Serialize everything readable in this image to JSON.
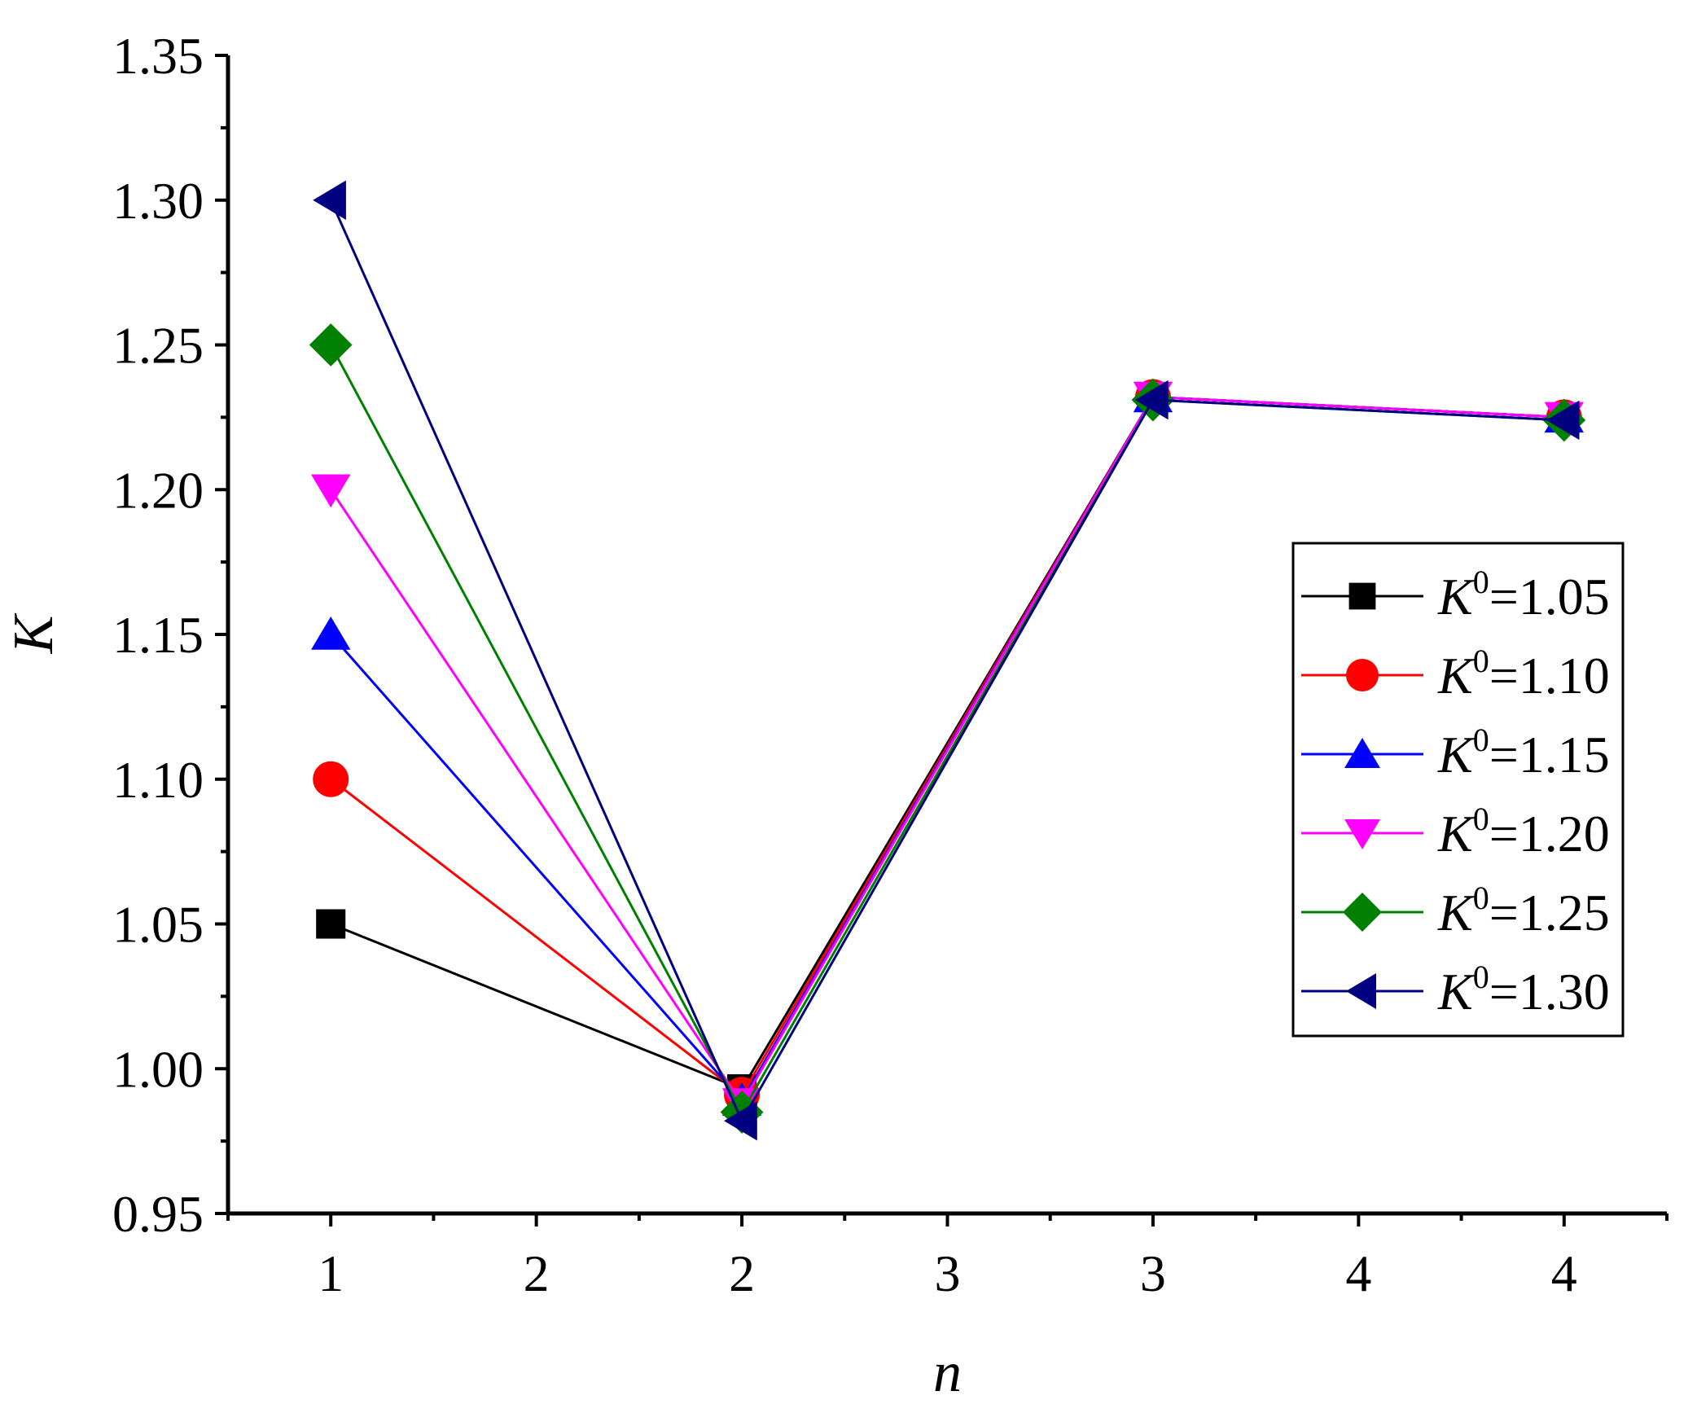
{
  "chart_data": {
    "type": "line",
    "title": "",
    "xlabel": "n",
    "ylabel": "K",
    "x_tick_positions": [
      1,
      1.5,
      2,
      2.5,
      3,
      3.5,
      4
    ],
    "x_tick_labels": [
      "1",
      "2",
      "2",
      "3",
      "3",
      "4",
      "4"
    ],
    "xlim": [
      0.75,
      4.25
    ],
    "ylim": [
      0.95,
      1.35
    ],
    "y_tick_values": [
      0.95,
      1.0,
      1.05,
      1.1,
      1.15,
      1.2,
      1.25,
      1.3,
      1.35
    ],
    "y_tick_labels": [
      "0.95",
      "1.00",
      "1.05",
      "1.10",
      "1.15",
      "1.20",
      "1.25",
      "1.30",
      "1.35"
    ],
    "legend_position": "right",
    "x": [
      1,
      2,
      3,
      4
    ],
    "series": [
      {
        "name": "K0=1.05",
        "label_base": "K",
        "label_sup": "0",
        "label_rest": "=1.05",
        "color": "#000000",
        "marker": "square",
        "values": [
          1.05,
          0.993,
          1.232,
          1.225
        ]
      },
      {
        "name": "K0=1.10",
        "label_base": "K",
        "label_sup": "0",
        "label_rest": "=1.10",
        "color": "#ff0000",
        "marker": "circle",
        "values": [
          1.1,
          0.991,
          1.232,
          1.225
        ]
      },
      {
        "name": "K0=1.15",
        "label_base": "K",
        "label_sup": "0",
        "label_rest": "=1.15",
        "color": "#0000ff",
        "marker": "triangle-up",
        "values": [
          1.15,
          0.989,
          1.232,
          1.225
        ]
      },
      {
        "name": "K0=1.20",
        "label_base": "K",
        "label_sup": "0",
        "label_rest": "=1.20",
        "color": "#ff00ff",
        "marker": "triangle-down",
        "values": [
          1.2,
          0.988,
          1.232,
          1.225
        ]
      },
      {
        "name": "K0=1.25",
        "label_base": "K",
        "label_sup": "0",
        "label_rest": "=1.25",
        "color": "#008000",
        "marker": "diamond",
        "values": [
          1.25,
          0.985,
          1.231,
          1.224
        ]
      },
      {
        "name": "K0=1.30",
        "label_base": "K",
        "label_sup": "0",
        "label_rest": "=1.30",
        "color": "#000080",
        "marker": "triangle-left",
        "values": [
          1.3,
          0.982,
          1.231,
          1.224
        ]
      }
    ]
  }
}
